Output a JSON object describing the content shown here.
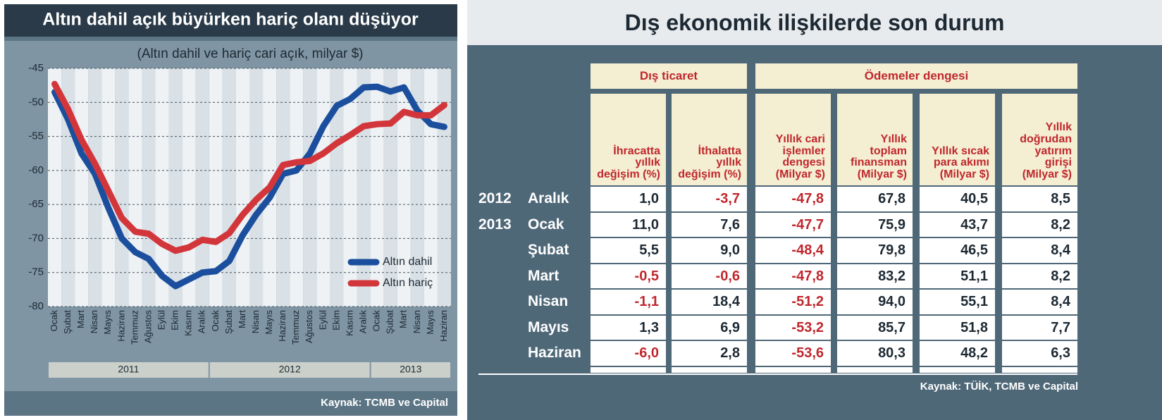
{
  "chart_data": {
    "type": "line",
    "title": "Altın dahil açık büyürken hariç olanı düşüyor",
    "subtitle": "(Altın dahil ve hariç cari açık, milyar $)",
    "categories": [
      "Ocak",
      "Şubat",
      "Mart",
      "Nisan",
      "Mayıs",
      "Haziran",
      "Temmuz",
      "Ağustos",
      "Eylül",
      "Ekim",
      "Kasım",
      "Aralık",
      "Ocak",
      "Şubat",
      "Mart",
      "Nisan",
      "Mayıs",
      "Haziran",
      "Temmuz",
      "Ağustos",
      "Eylül",
      "Ekim",
      "Kasım",
      "Aralık",
      "Ocak",
      "Şubat",
      "Mart",
      "Nisan",
      "Mayıs",
      "Haziran"
    ],
    "x_groups": [
      "2011",
      "2012",
      "2013"
    ],
    "series": [
      {
        "name": "Altın dahil",
        "color": "#1b4f9e",
        "values": [
          -48.5,
          -52.5,
          -57.5,
          -60.5,
          -65.5,
          -70,
          -72,
          -73,
          -75.5,
          -77,
          -76,
          -75,
          -74.8,
          -73.3,
          -69.5,
          -66.5,
          -64,
          -60.5,
          -60,
          -57.5,
          -53.5,
          -50.5,
          -49.5,
          -47.8,
          -47.7,
          -48.4,
          -47.8,
          -51.2,
          -53.2,
          -53.6
        ]
      },
      {
        "name": "Altın hariç",
        "color": "#d2363b",
        "values": [
          -47.3,
          -51,
          -55.5,
          -59,
          -63,
          -67,
          -69,
          -69.3,
          -70.8,
          -71.8,
          -71.3,
          -70.2,
          -70.5,
          -69.2,
          -66.5,
          -64.3,
          -62.5,
          -59.2,
          -58.8,
          -58.6,
          -57.5,
          -56,
          -54.8,
          -53.5,
          -53.2,
          -53.1,
          -51.4,
          -51.9,
          -51.9,
          -50.4
        ]
      }
    ],
    "ylim": [
      -80,
      -45
    ],
    "yticks": [
      -45,
      -50,
      -55,
      -60,
      -65,
      -70,
      -75,
      -80
    ],
    "grid": true,
    "source": "Kaynak: TCMB ve Capital"
  },
  "table": {
    "title": "Dış ekonomik ilişkilerde son durum",
    "groups": [
      {
        "label": "Dış ticaret",
        "columns": [
          "İhracatta yıllık değişim (%)",
          "İthalatta yıllık değişim (%)"
        ]
      },
      {
        "label": "Ödemeler dengesi",
        "columns": [
          "Yıllık cari işlemler dengesi (Milyar $)",
          "Yıllık toplam finansman (Milyar $)",
          "Yıllık sıcak para akımı (Milyar $)",
          "Yıllık doğrudan yatırım girişi (Milyar $)"
        ]
      }
    ],
    "rows": [
      {
        "year": "2012",
        "month": "Aralık",
        "cells": [
          "1,0",
          "-3,7",
          "-47,8",
          "67,8",
          "40,5",
          "8,5"
        ]
      },
      {
        "year": "2013",
        "month": "Ocak",
        "cells": [
          "11,0",
          "7,6",
          "-47,7",
          "75,9",
          "43,7",
          "8,2"
        ]
      },
      {
        "year": null,
        "month": "Şubat",
        "cells": [
          "5,5",
          "9,0",
          "-48,4",
          "79,8",
          "46,5",
          "8,4"
        ]
      },
      {
        "year": null,
        "month": "Mart",
        "cells": [
          "-0,5",
          "-0,6",
          "-47,8",
          "83,2",
          "51,1",
          "8,2"
        ]
      },
      {
        "year": null,
        "month": "Nisan",
        "cells": [
          "-1,1",
          "18,4",
          "-51,2",
          "94,0",
          "55,1",
          "8,4"
        ]
      },
      {
        "year": null,
        "month": "Mayıs",
        "cells": [
          "1,3",
          "6,9",
          "-53,2",
          "85,7",
          "51,8",
          "7,7"
        ]
      },
      {
        "year": null,
        "month": "Haziran",
        "cells": [
          "-6,0",
          "2,8",
          "-53,6",
          "80,3",
          "48,2",
          "6,3"
        ]
      }
    ],
    "source": "Kaynak: TÜİK, TCMB ve Capital"
  }
}
